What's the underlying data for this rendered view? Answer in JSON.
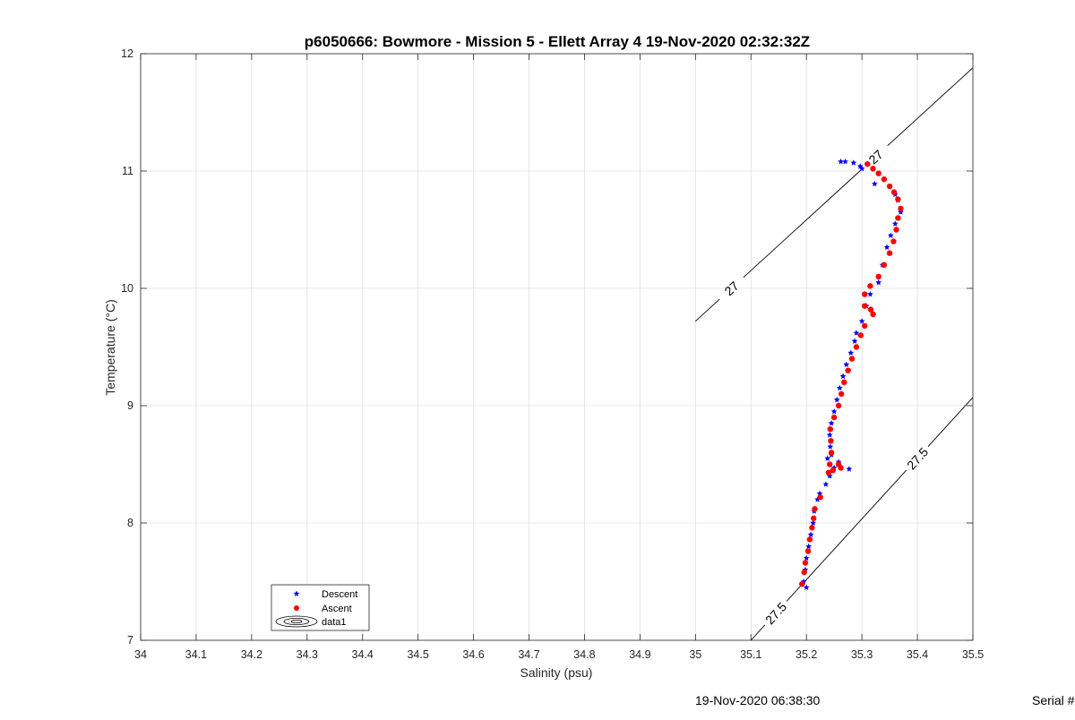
{
  "footer": {
    "timestamp": "19-Nov-2020 06:38:30",
    "serial_label": "Serial #"
  },
  "chart_data": {
    "type": "scatter",
    "title": "p6050666: Bowmore - Mission 5 - Ellett Array 4 19-Nov-2020 02:32:32Z",
    "xlabel": "Salinity (psu)",
    "ylabel": "Temperature (°C)",
    "xlim": [
      34,
      35.5
    ],
    "ylim": [
      7,
      12
    ],
    "xticks": [
      34,
      34.1,
      34.2,
      34.3,
      34.4,
      34.5,
      34.6,
      34.7,
      34.8,
      34.9,
      35,
      35.1,
      35.2,
      35.3,
      35.4,
      35.5
    ],
    "xtick_labels": [
      "34",
      "34.1",
      "34.2",
      "34.3",
      "34.4",
      "34.5",
      "34.6",
      "34.7",
      "34.8",
      "34.9",
      "35",
      "35.1",
      "35.2",
      "35.3",
      "35.4",
      "35.5"
    ],
    "yticks": [
      7,
      8,
      9,
      10,
      11,
      12
    ],
    "ytick_labels": [
      "7",
      "8",
      "9",
      "10",
      "11",
      "12"
    ],
    "grid": true,
    "legend": {
      "placement": "bottom-left",
      "entries": [
        "Descent",
        "Ascent",
        "data1"
      ]
    },
    "colors": {
      "descent": "#0000ff",
      "ascent": "#ff0000",
      "contour": "#000000",
      "grid": "#e0e0e0"
    },
    "contours": [
      {
        "level": "27",
        "points": [
          [
            35.0,
            9.72
          ],
          [
            35.5,
            11.88
          ]
        ],
        "labels": [
          {
            "text": "27",
            "at": [
              35.065,
              10.0
            ]
          },
          {
            "text": "27",
            "at": [
              35.325,
              11.12
            ]
          }
        ]
      },
      {
        "level": "27.5",
        "points": [
          [
            35.1,
            7.0
          ],
          [
            35.5,
            9.07
          ]
        ],
        "labels": [
          {
            "text": "27.5",
            "at": [
              35.145,
              7.23
            ]
          },
          {
            "text": "27.5",
            "at": [
              35.4,
              8.55
            ]
          }
        ]
      }
    ],
    "series": [
      {
        "name": "Descent",
        "marker": "star",
        "points": [
          [
            35.2,
            7.45
          ],
          [
            35.195,
            7.5
          ],
          [
            35.198,
            7.6
          ],
          [
            35.2,
            7.7
          ],
          [
            35.204,
            7.8
          ],
          [
            35.208,
            7.9
          ],
          [
            35.212,
            8.0
          ],
          [
            35.214,
            8.1
          ],
          [
            35.22,
            8.2
          ],
          [
            35.224,
            8.25
          ],
          [
            35.235,
            8.33
          ],
          [
            35.242,
            8.4
          ],
          [
            35.25,
            8.47
          ],
          [
            35.258,
            8.52
          ],
          [
            35.277,
            8.46
          ],
          [
            35.245,
            8.58
          ],
          [
            35.238,
            8.55
          ],
          [
            35.243,
            8.65
          ],
          [
            35.242,
            8.75
          ],
          [
            35.245,
            8.85
          ],
          [
            35.25,
            8.95
          ],
          [
            35.255,
            9.05
          ],
          [
            35.26,
            9.15
          ],
          [
            35.266,
            9.25
          ],
          [
            35.272,
            9.35
          ],
          [
            35.28,
            9.45
          ],
          [
            35.287,
            9.55
          ],
          [
            35.29,
            9.62
          ],
          [
            35.3,
            9.72
          ],
          [
            35.308,
            9.85
          ],
          [
            35.315,
            9.95
          ],
          [
            35.33,
            10.05
          ],
          [
            35.337,
            10.2
          ],
          [
            35.345,
            10.35
          ],
          [
            35.352,
            10.45
          ],
          [
            35.36,
            10.55
          ],
          [
            35.37,
            10.65
          ],
          [
            35.365,
            10.75
          ],
          [
            35.36,
            10.8
          ],
          [
            35.323,
            10.89
          ],
          [
            35.297,
            11.04
          ],
          [
            35.3,
            11.02
          ],
          [
            35.285,
            11.07
          ],
          [
            35.27,
            11.08
          ],
          [
            35.262,
            11.08
          ]
        ]
      },
      {
        "name": "Ascent",
        "marker": "circle",
        "points": [
          [
            35.192,
            7.48
          ],
          [
            35.196,
            7.58
          ],
          [
            35.198,
            7.66
          ],
          [
            35.203,
            7.76
          ],
          [
            35.206,
            7.86
          ],
          [
            35.21,
            7.96
          ],
          [
            35.213,
            8.04
          ],
          [
            35.215,
            8.12
          ],
          [
            35.225,
            8.22
          ],
          [
            35.24,
            8.43
          ],
          [
            35.248,
            8.45
          ],
          [
            35.262,
            8.47
          ],
          [
            35.258,
            8.5
          ],
          [
            35.242,
            8.5
          ],
          [
            35.245,
            8.6
          ],
          [
            35.244,
            8.7
          ],
          [
            35.243,
            8.8
          ],
          [
            35.25,
            8.9
          ],
          [
            35.258,
            9.0
          ],
          [
            35.263,
            9.1
          ],
          [
            35.268,
            9.2
          ],
          [
            35.275,
            9.3
          ],
          [
            35.282,
            9.4
          ],
          [
            35.29,
            9.5
          ],
          [
            35.298,
            9.6
          ],
          [
            35.305,
            9.68
          ],
          [
            35.32,
            9.78
          ],
          [
            35.316,
            9.82
          ],
          [
            35.305,
            9.85
          ],
          [
            35.305,
            9.95
          ],
          [
            35.315,
            10.02
          ],
          [
            35.33,
            10.1
          ],
          [
            35.34,
            10.2
          ],
          [
            35.35,
            10.3
          ],
          [
            35.357,
            10.4
          ],
          [
            35.362,
            10.5
          ],
          [
            35.365,
            10.6
          ],
          [
            35.37,
            10.68
          ],
          [
            35.365,
            10.76
          ],
          [
            35.358,
            10.82
          ],
          [
            35.35,
            10.87
          ],
          [
            35.34,
            10.93
          ],
          [
            35.33,
            10.98
          ],
          [
            35.32,
            11.02
          ],
          [
            35.31,
            11.06
          ]
        ]
      }
    ]
  }
}
